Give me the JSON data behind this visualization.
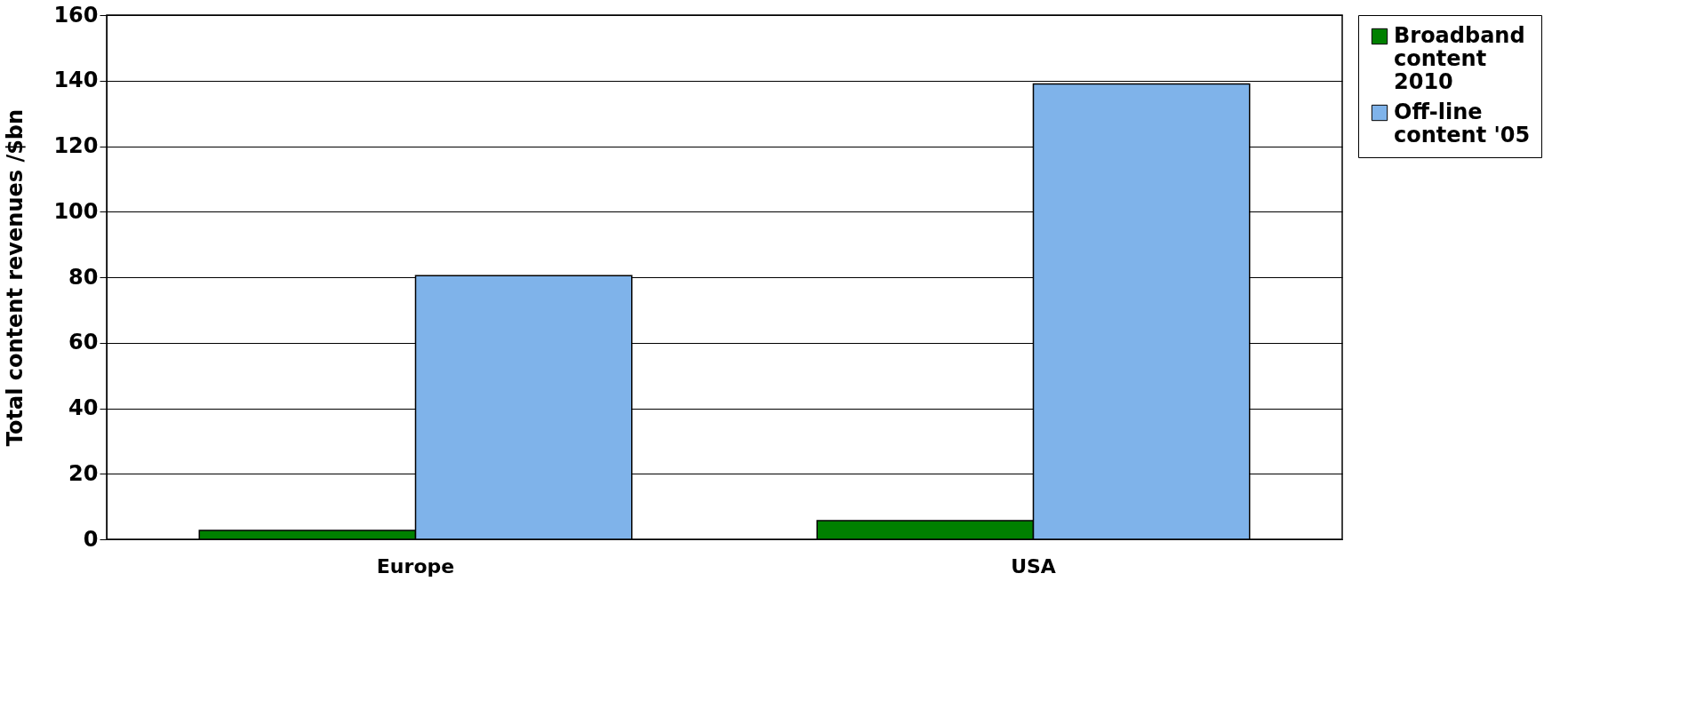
{
  "chart_data": {
    "type": "bar",
    "ylabel": "Total content revenues /$bn",
    "categories": [
      "Europe",
      "USA"
    ],
    "series": [
      {
        "name": "Broadband content 2010",
        "color": "#008000",
        "values": [
          2.7,
          5.7
        ]
      },
      {
        "name": "Off-line content '05",
        "color": "#7fb3ea",
        "values": [
          80.5,
          139
        ]
      }
    ],
    "ylim": [
      0,
      160
    ],
    "yticks": [
      0,
      20,
      40,
      60,
      80,
      100,
      120,
      140,
      160
    ],
    "grid": "y",
    "legend": "right"
  }
}
